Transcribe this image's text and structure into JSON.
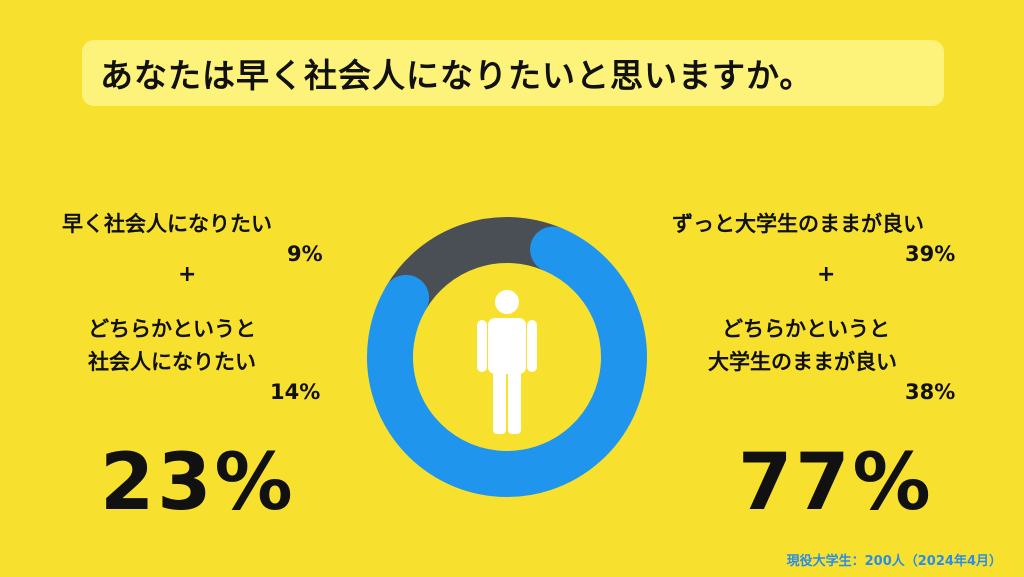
{
  "title": "あなたは早く社会人になりたいと思いますか。",
  "left": {
    "item1_label": "早く社会人になりたい",
    "item1_value": "9%",
    "plus": "+",
    "item2_label_line1": "どちらかというと",
    "item2_label_line2": "社会人になりたい",
    "item2_value": "14%",
    "total": "23%"
  },
  "right": {
    "item1_label": "ずっと大学生のままが良い",
    "item1_value": "39%",
    "plus": "+",
    "item2_label_line1": "どちらかというと",
    "item2_label_line2": "大学生のままが良い",
    "item2_value": "38%",
    "total": "77%"
  },
  "note": "現役大学生：200人（2024年4月）",
  "colors": {
    "background": "#f7e12e",
    "title_box": "#fdf27a",
    "segment_blue": "#1f95ee",
    "segment_dark": "#4a4f55",
    "figure": "#ffffff",
    "note": "#2b8de6"
  },
  "icon": "person-icon",
  "chart_data": {
    "type": "pie",
    "variant": "donut",
    "categories": [
      "社会人になりたい",
      "大学生のままが良い"
    ],
    "values": [
      23,
      77
    ],
    "unit": "%",
    "breakdown": [
      {
        "label": "早く社会人になりたい",
        "value": 9
      },
      {
        "label": "どちらかというと社会人になりたい",
        "value": 14
      },
      {
        "label": "ずっと大学生のままが良い",
        "value": 39
      },
      {
        "label": "どちらかというと大学生のままが良い",
        "value": 38
      }
    ]
  }
}
